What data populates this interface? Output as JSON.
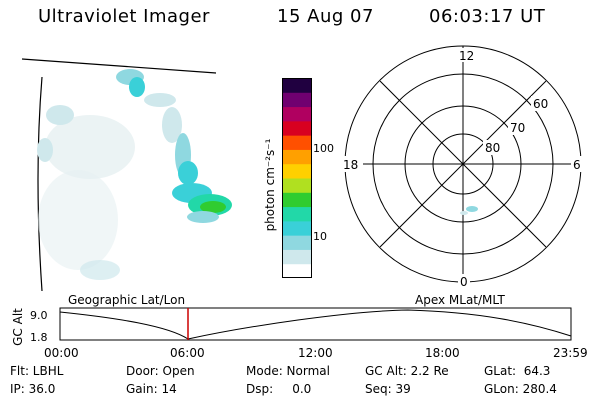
{
  "header": {
    "title": "Ultraviolet Imager",
    "date": "15 Aug 07",
    "time": "06:03:17 UT"
  },
  "colorbar": {
    "label": "photon cm⁻²s⁻¹",
    "ticks": [
      "100",
      "10"
    ],
    "colors": [
      "#ffffff",
      "#cfe8ec",
      "#8fd8e0",
      "#3ad0d8",
      "#22d8a8",
      "#30cc30",
      "#b0e020",
      "#ffd000",
      "#ffa000",
      "#ff5000",
      "#d80020",
      "#b00060",
      "#700070",
      "#200040"
    ]
  },
  "polar_plot": {
    "mlt_labels": {
      "top": "12",
      "left": "18",
      "right": "6",
      "bottom": "0"
    },
    "lat_labels": [
      "60",
      "70",
      "80"
    ]
  },
  "orbit_plot": {
    "left_title": "Geographic Lat/Lon",
    "right_title": "Apex MLat/MLT",
    "y_axis_label": "GC Alt",
    "y_ticks": [
      "9.0",
      "1.8"
    ],
    "x_ticks": [
      "00:00",
      "06:00",
      "12:00",
      "18:00",
      "23:59"
    ],
    "marker_color": "#cc0000"
  },
  "footer": {
    "row1": {
      "flt": "Flt: LBHL",
      "door": "Door: Open",
      "mode": "Mode: Normal",
      "gc_alt": "GC Alt: 2.2 Re",
      "glat": "GLat:  64.3"
    },
    "row2": {
      "ip": "IP: 36.0",
      "gain": "Gain: 14",
      "dsp": "Dsp:     0.0",
      "seq": "Seq: 39",
      "glon": "GLon: 280.4"
    }
  }
}
